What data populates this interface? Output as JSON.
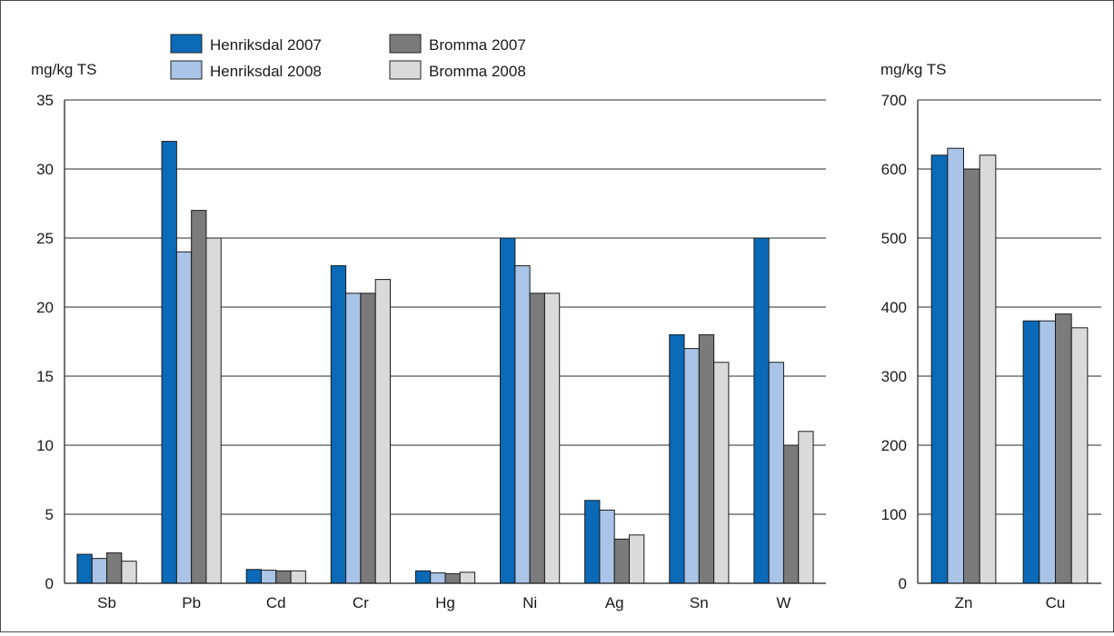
{
  "legend": [
    {
      "name": "Henriksdal 2007",
      "color": "#0a6ab8"
    },
    {
      "name": "Henriksdal 2008",
      "color": "#a9c4e6"
    },
    {
      "name": "Bromma 2007",
      "color": "#7b7b7b"
    },
    {
      "name": "Bromma 2008",
      "color": "#dadada"
    }
  ],
  "chart_data": [
    {
      "type": "bar",
      "ylabel": "mg/kg TS",
      "ylim": [
        0,
        35
      ],
      "yticks": [
        "0",
        "5",
        "10",
        "15",
        "20",
        "25",
        "30",
        "35"
      ],
      "grid": true,
      "legend_position": "top",
      "categories": [
        "Sb",
        "Pb",
        "Cd",
        "Cr",
        "Hg",
        "Ni",
        "Ag",
        "Sn",
        "W"
      ],
      "series": [
        {
          "name": "Henriksdal 2007",
          "color": "#0a6ab8",
          "values": [
            2.1,
            32,
            1.0,
            23,
            0.9,
            25,
            6.0,
            18,
            25
          ]
        },
        {
          "name": "Henriksdal 2008",
          "color": "#a9c4e6",
          "values": [
            1.8,
            24,
            0.95,
            21,
            0.75,
            23,
            5.3,
            17,
            16
          ]
        },
        {
          "name": "Bromma 2007",
          "color": "#7b7b7b",
          "values": [
            2.2,
            27,
            0.9,
            21,
            0.7,
            21,
            3.2,
            18,
            10
          ]
        },
        {
          "name": "Bromma 2008",
          "color": "#dadada",
          "values": [
            1.6,
            25,
            0.9,
            22,
            0.8,
            21,
            3.5,
            16,
            11
          ]
        }
      ]
    },
    {
      "type": "bar",
      "ylabel": "mg/kg TS",
      "ylim": [
        0,
        700
      ],
      "yticks": [
        "0",
        "100",
        "200",
        "300",
        "400",
        "500",
        "600",
        "700"
      ],
      "grid": true,
      "categories": [
        "Zn",
        "Cu"
      ],
      "series": [
        {
          "name": "Henriksdal 2007",
          "color": "#0a6ab8",
          "values": [
            620,
            380
          ]
        },
        {
          "name": "Henriksdal 2008",
          "color": "#a9c4e6",
          "values": [
            630,
            380
          ]
        },
        {
          "name": "Bromma 2007",
          "color": "#7b7b7b",
          "values": [
            600,
            390
          ]
        },
        {
          "name": "Bromma 2008",
          "color": "#dadada",
          "values": [
            620,
            370
          ]
        }
      ]
    }
  ]
}
